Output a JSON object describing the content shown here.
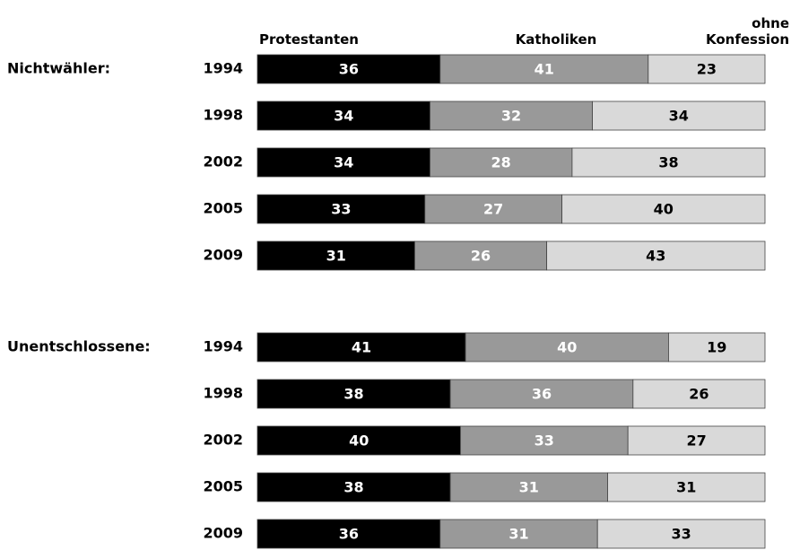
{
  "chart_data": {
    "type": "stacked-bar",
    "group_labels": [
      "Nichtwähler:",
      null,
      null,
      null,
      null,
      "Unentschlossene:",
      null,
      null,
      null,
      null
    ],
    "categories": [
      "1994",
      "1998",
      "2002",
      "2005",
      "2009",
      "1994",
      "1998",
      "2002",
      "2005",
      "2009"
    ],
    "series": [
      {
        "name": "Protestanten",
        "color": "#000000",
        "label_color": "#ffffff",
        "values": [
          36,
          34,
          34,
          33,
          31,
          41,
          38,
          40,
          38,
          36
        ]
      },
      {
        "name": "Katholiken",
        "color": "#999999",
        "label_color": "#ffffff",
        "values": [
          41,
          32,
          28,
          27,
          26,
          40,
          36,
          33,
          31,
          31
        ]
      },
      {
        "name": "ohne Konfession",
        "color": "#d9d9d9",
        "label_color": "#000000",
        "values": [
          23,
          34,
          38,
          40,
          43,
          19,
          26,
          27,
          31,
          33
        ]
      }
    ],
    "xlim": [
      0,
      100
    ]
  }
}
